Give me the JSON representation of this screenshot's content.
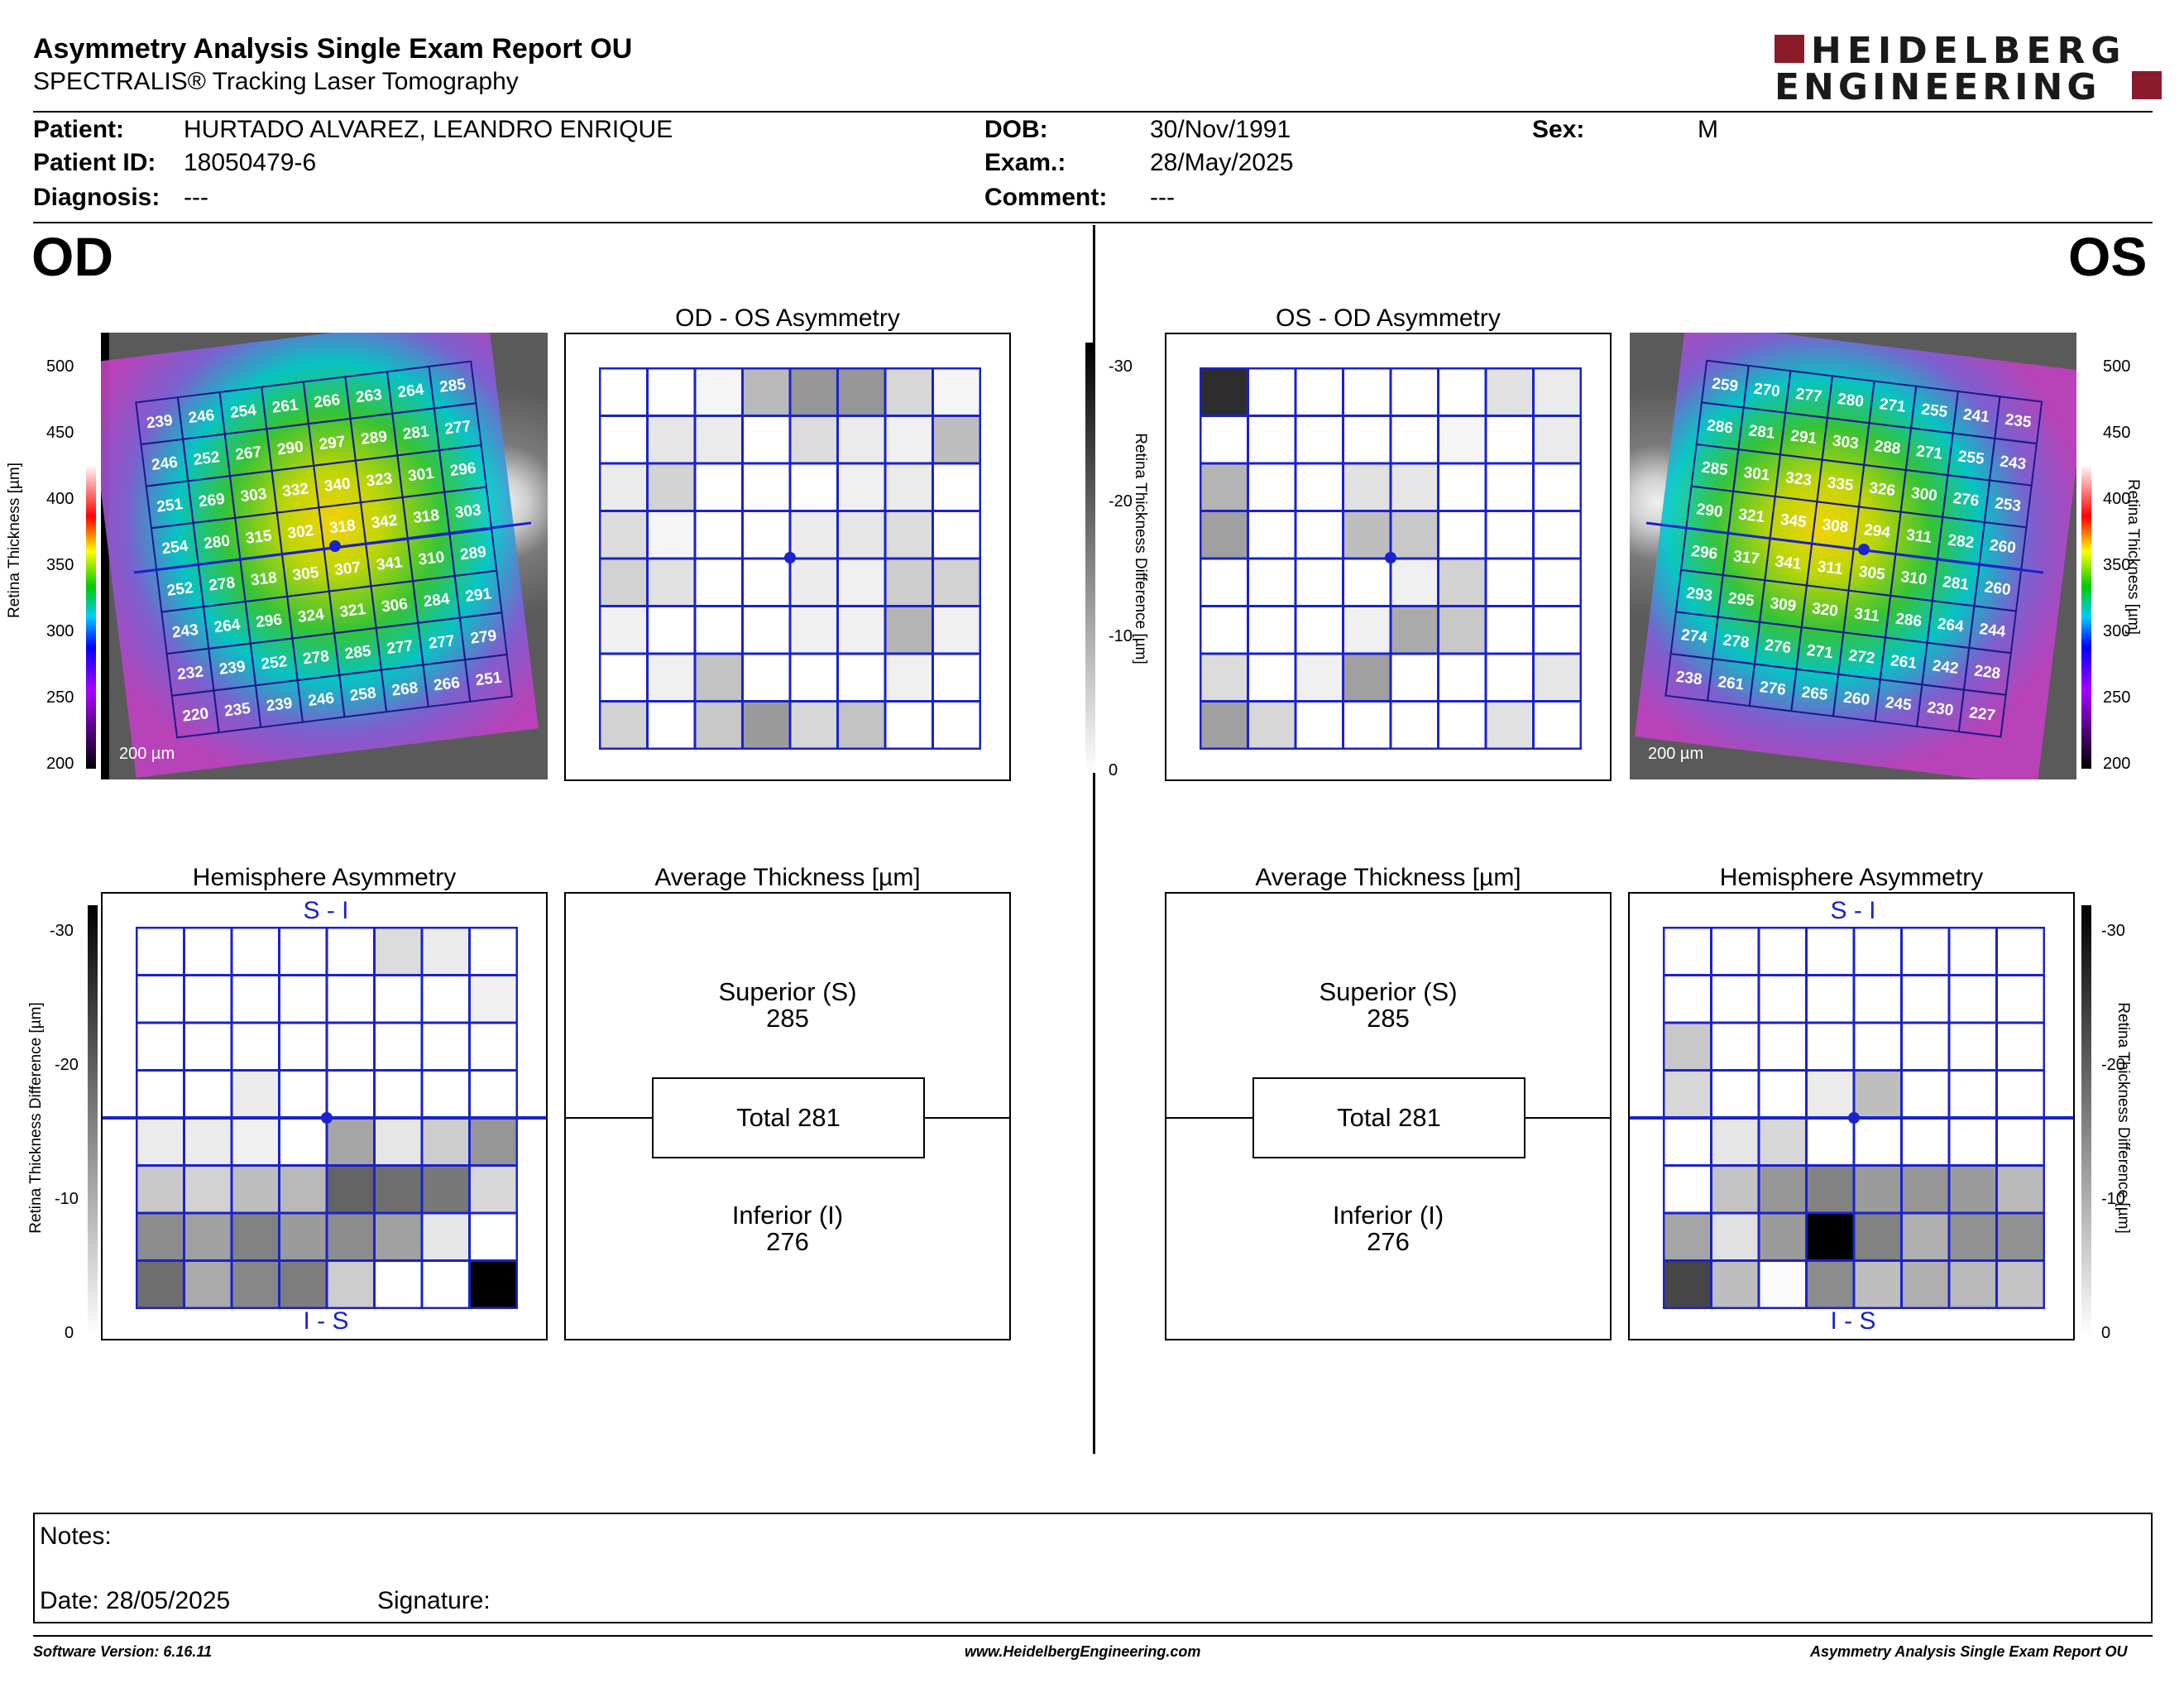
{
  "header": {
    "title": "Asymmetry Analysis Single Exam Report OU",
    "subtitle": "SPECTRALIS® Tracking Laser Tomography",
    "logo_line1": "HEIDELBERG",
    "logo_line2": "ENGINEERING",
    "brand_color": "#8b1a2b"
  },
  "patient": {
    "patient_label": "Patient:",
    "patient_name": "HURTADO ALVAREZ, LEANDRO ENRIQUE",
    "id_label": "Patient ID:",
    "patient_id": "18050479-6",
    "diagnosis_label": "Diagnosis:",
    "diagnosis": "---",
    "dob_label": "DOB:",
    "dob": "30/Nov/1991",
    "exam_label": "Exam.:",
    "exam": "28/May/2025",
    "comment_label": "Comment:",
    "comment": "---",
    "sex_label": "Sex:",
    "sex": "M"
  },
  "eyes": {
    "left_label": "OD",
    "right_label": "OS"
  },
  "titles": {
    "od_asym": "OD - OS Asymmetry",
    "os_asym": "OS - OD Asymmetry",
    "hemi": "Hemisphere Asymmetry",
    "avg": "Average Thickness [µm]"
  },
  "scale_labels": {
    "thickness_axis": "Retina  Thickness [µm]",
    "diff_axis": "Retina Thickness Difference [µm]",
    "scale_bar": "200 µm",
    "hemi_top": "S - I",
    "hemi_bottom": "I - S"
  },
  "thickness_ticks": [
    "500",
    "450",
    "400",
    "350",
    "300",
    "250",
    "200"
  ],
  "diff_ticks": [
    "-30",
    "-20",
    "-10",
    "0"
  ],
  "average": {
    "superior_label": "Superior (S)",
    "superior_value": "285",
    "total_label": "Total 281",
    "inferior_label": "Inferior (I)",
    "inferior_value": "276"
  },
  "od_thickness": [
    [
      239,
      246,
      254,
      261,
      266,
      263,
      264,
      285
    ],
    [
      246,
      252,
      267,
      290,
      297,
      289,
      281,
      277
    ],
    [
      251,
      269,
      303,
      332,
      340,
      323,
      301,
      296
    ],
    [
      254,
      280,
      315,
      302,
      318,
      342,
      318,
      303
    ],
    [
      252,
      278,
      318,
      305,
      307,
      341,
      310,
      289
    ],
    [
      243,
      264,
      296,
      324,
      321,
      306,
      284,
      291
    ],
    [
      232,
      239,
      252,
      278,
      285,
      277,
      277,
      279
    ],
    [
      220,
      235,
      239,
      246,
      258,
      268,
      266,
      251
    ]
  ],
  "os_thickness": [
    [
      259,
      270,
      277,
      280,
      271,
      255,
      241,
      235
    ],
    [
      286,
      281,
      291,
      303,
      288,
      271,
      255,
      243
    ],
    [
      285,
      301,
      323,
      335,
      326,
      300,
      276,
      253
    ],
    [
      290,
      321,
      345,
      308,
      294,
      311,
      282,
      260
    ],
    [
      296,
      317,
      341,
      311,
      305,
      310,
      281,
      260
    ],
    [
      293,
      295,
      309,
      320,
      311,
      286,
      264,
      244
    ],
    [
      274,
      278,
      276,
      271,
      272,
      261,
      242,
      228
    ],
    [
      238,
      261,
      276,
      265,
      260,
      245,
      230,
      227
    ]
  ],
  "od_asymmetry_gray": [
    [
      255,
      255,
      245,
      185,
      150,
      150,
      215,
      245
    ],
    [
      255,
      230,
      235,
      255,
      220,
      235,
      240,
      190
    ],
    [
      235,
      210,
      255,
      255,
      255,
      240,
      235,
      255
    ],
    [
      220,
      245,
      255,
      255,
      235,
      230,
      220,
      255
    ],
    [
      210,
      225,
      255,
      255,
      235,
      240,
      205,
      210
    ],
    [
      240,
      255,
      255,
      255,
      240,
      240,
      180,
      240
    ],
    [
      255,
      240,
      195,
      255,
      255,
      255,
      240,
      255
    ],
    [
      210,
      255,
      200,
      155,
      215,
      195,
      255,
      255
    ]
  ],
  "os_asymmetry_gray": [
    [
      45,
      255,
      255,
      255,
      255,
      255,
      225,
      235
    ],
    [
      255,
      255,
      255,
      255,
      255,
      245,
      255,
      235
    ],
    [
      180,
      255,
      255,
      225,
      230,
      255,
      255,
      255
    ],
    [
      160,
      255,
      255,
      190,
      200,
      255,
      255,
      255
    ],
    [
      255,
      255,
      255,
      255,
      240,
      210,
      255,
      255
    ],
    [
      255,
      255,
      255,
      240,
      170,
      200,
      255,
      255
    ],
    [
      220,
      255,
      240,
      160,
      255,
      255,
      255,
      230
    ],
    [
      160,
      215,
      255,
      255,
      255,
      255,
      225,
      255
    ]
  ],
  "od_hemi_gray": [
    [
      255,
      255,
      255,
      255,
      255,
      220,
      235,
      255
    ],
    [
      255,
      255,
      255,
      255,
      255,
      255,
      255,
      240
    ],
    [
      255,
      255,
      255,
      255,
      255,
      255,
      255,
      255
    ],
    [
      255,
      255,
      235,
      255,
      255,
      255,
      255,
      255
    ],
    [
      235,
      235,
      240,
      255,
      165,
      230,
      205,
      150
    ],
    [
      200,
      210,
      190,
      185,
      100,
      110,
      120,
      215
    ],
    [
      140,
      160,
      130,
      155,
      140,
      160,
      230,
      255
    ],
    [
      110,
      170,
      135,
      125,
      205,
      255,
      255,
      0
    ]
  ],
  "os_hemi_gray": [
    [
      255,
      255,
      255,
      255,
      255,
      255,
      255,
      255
    ],
    [
      255,
      255,
      255,
      255,
      255,
      255,
      255,
      255
    ],
    [
      200,
      255,
      255,
      255,
      255,
      255,
      255,
      255
    ],
    [
      215,
      255,
      255,
      235,
      190,
      255,
      255,
      255
    ],
    [
      255,
      230,
      215,
      255,
      255,
      255,
      255,
      255
    ],
    [
      255,
      195,
      150,
      130,
      155,
      150,
      155,
      185
    ],
    [
      165,
      225,
      155,
      0,
      130,
      175,
      145,
      145
    ],
    [
      70,
      190,
      250,
      140,
      190,
      175,
      185,
      195
    ]
  ],
  "notes": {
    "notes_label": "Notes:",
    "date_label": "Date: 28/05/2025",
    "signature_label": "Signature:"
  },
  "footer": {
    "software": "Software Version: 6.16.11",
    "website": "www.HeidelbergEngineering.com",
    "report_name": "Asymmetry Analysis Single Exam Report OU"
  },
  "colors": {
    "grid_blue": "#1a22cc",
    "brand": "#8b1a2b"
  }
}
